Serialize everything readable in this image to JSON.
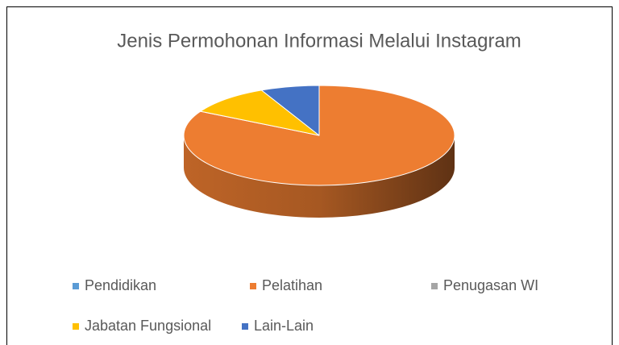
{
  "chart_data": {
    "type": "pie3d",
    "title": "Jenis Permohonan Informasi Melalui Instagram",
    "categories": [
      "Pendidikan",
      "Pelatihan",
      "Penugasan WI",
      "Jabatan Fungsional",
      "Lain-Lain"
    ],
    "values": [
      0,
      83,
      0,
      10,
      7
    ],
    "colors": [
      "#5b9bd5",
      "#ed7d31",
      "#a5a5a5",
      "#ffc000",
      "#4472c4"
    ],
    "legend": "bottom"
  }
}
